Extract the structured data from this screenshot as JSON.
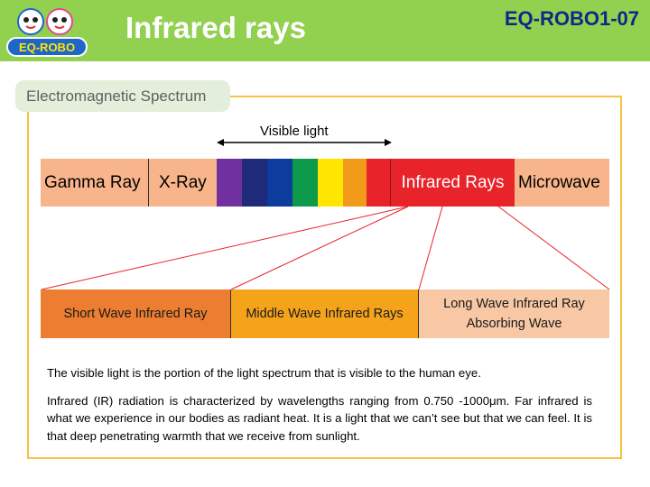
{
  "header": {
    "title": "Infrared rays",
    "code": "EQ-ROBO1-07",
    "logo_text": "EQ-ROBO"
  },
  "section": {
    "label": "Electromagnetic Spectrum"
  },
  "spectrum": {
    "visible_label": "Visible light",
    "gamma": "Gamma Ray",
    "xray": "X-Ray",
    "infrared": "Infrared Rays",
    "microwave": "Microwave",
    "visible_colors": [
      "#7030a0",
      "#1f2a78",
      "#0b3c9e",
      "#0d9a4a",
      "#ffe600",
      "#f29a1a",
      "#e8232a"
    ]
  },
  "infrared_bands": {
    "short": "Short Wave Infrared Ray",
    "middle": "Middle Wave Infrared Rays",
    "long_line1": "Long Wave Infrared Ray",
    "long_line2": "Absorbing Wave"
  },
  "description": {
    "p1": "The visible light is the portion of the light spectrum that is visible to the human eye.",
    "p2": "Infrared (IR) radiation is characterized by wavelengths ranging from 0.750 -1000μm. Far infrared is what we experience in our bodies as radiant heat. It is a light that we can’t see but that we can feel. It is that deep penetrating warmth that we receive from sunlight."
  },
  "colors": {
    "header_green": "#92d050",
    "title_white": "#ffffff",
    "code_blue": "#0b2a86",
    "panel_border": "#f5c242",
    "peach": "#f8b48a",
    "infrared_red": "#e8232a",
    "short_wave": "#ed7d31",
    "middle_wave": "#f5a31a",
    "long_wave": "#f8c8a4"
  }
}
